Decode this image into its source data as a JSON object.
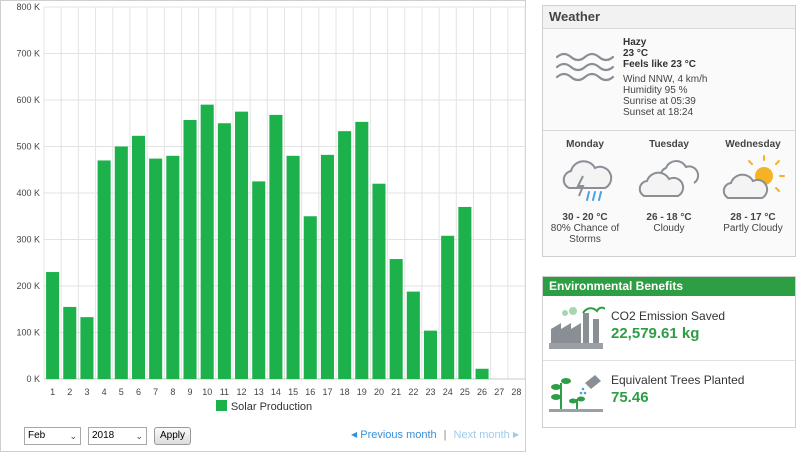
{
  "chart_data": {
    "type": "bar",
    "categories": [
      "1",
      "2",
      "3",
      "4",
      "5",
      "6",
      "7",
      "8",
      "9",
      "10",
      "11",
      "12",
      "13",
      "14",
      "15",
      "16",
      "17",
      "18",
      "19",
      "20",
      "21",
      "22",
      "23",
      "24",
      "25",
      "26",
      "27",
      "28"
    ],
    "series": [
      {
        "name": "Solar Production",
        "values": [
          230000,
          155000,
          133000,
          470000,
          500000,
          523000,
          474000,
          480000,
          557000,
          590000,
          550000,
          575000,
          425000,
          568000,
          480000,
          350000,
          482000,
          533000,
          553000,
          420000,
          258000,
          188000,
          104000,
          308000,
          370000,
          22000,
          0,
          0
        ]
      }
    ],
    "y_tick_labels": [
      "0 K",
      "100 K",
      "200 K",
      "300 K",
      "400 K",
      "500 K",
      "600 K",
      "700 K",
      "800 K"
    ],
    "ylim": [
      0,
      800000
    ],
    "grid": true,
    "legend_position": "bottom-center",
    "bar_color": "#1db14b"
  },
  "legend": {
    "label": "Solar Production"
  },
  "controls": {
    "month_value": "Feb",
    "year_value": "2018",
    "apply_label": "Apply",
    "prev_label": "Previous month",
    "next_label": "Next month",
    "separator": "|"
  },
  "weather": {
    "title": "Weather",
    "today": {
      "condition": "Hazy",
      "temp": "23 °C",
      "feels_like": "Feels like 23 °C",
      "wind": "Wind NNW, 4 km/h",
      "humidity": "Humidity 95 %",
      "sunrise": "Sunrise at 05:39",
      "sunset": "Sunset at 18:24",
      "icon": "haze-icon"
    },
    "forecast": [
      {
        "day": "Monday",
        "temp": "30 - 20 °C",
        "desc1": "80% Chance of",
        "desc2": "Storms",
        "icon": "thunderstorm-icon"
      },
      {
        "day": "Tuesday",
        "temp": "26 - 18 °C",
        "desc1": "Cloudy",
        "desc2": "",
        "icon": "cloudy-icon"
      },
      {
        "day": "Wednesday",
        "temp": "28 - 17 °C",
        "desc1": "Partly Cloudy",
        "desc2": "",
        "icon": "partly-cloudy-icon"
      }
    ]
  },
  "environment": {
    "title": "Environmental Benefits",
    "co2_label": "CO2 Emission Saved",
    "co2_value": "22,579.61 kg",
    "trees_label": "Equivalent Trees Planted",
    "trees_value": "75.46",
    "accent_color": "#2e9e44"
  }
}
